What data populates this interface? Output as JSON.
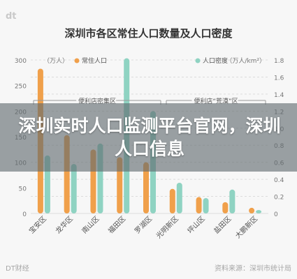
{
  "brand": "dt",
  "chart_data": {
    "type": "bar",
    "title": "深圳市各区常住人口数量及人口密度",
    "categories": [
      "宝安区",
      "龙华区",
      "南山区",
      "福田区",
      "罗湖区",
      "光明新区",
      "坪山区",
      "盐田区",
      "大鹏新区"
    ],
    "series": [
      {
        "name": "常住人口",
        "axis": "left",
        "color": "#f0a04b",
        "values": [
          283,
          153,
          125,
          110,
          100,
          48,
          32,
          22,
          11
        ]
      },
      {
        "name": "人口密度",
        "axis": "right",
        "color": "#8fd3c2",
        "values": [
          0.68,
          0.58,
          0.82,
          1.82,
          1.2,
          0.36,
          0.18,
          0.28,
          0.04
        ]
      }
    ],
    "left_axis": {
      "unit": "（万人）",
      "ticks": [
        0,
        50,
        100,
        150,
        200,
        250,
        300
      ],
      "ylim": [
        0,
        300
      ]
    },
    "right_axis": {
      "unit": "（万人/km²）",
      "ticks": [
        0,
        0.2,
        0.4,
        0.6,
        0.8,
        1.0,
        1.2,
        1.4,
        1.6,
        1.8
      ],
      "ylim": [
        0,
        1.8
      ]
    },
    "annotations": [
      "便利店密集区",
      "便利店“荒漠”区"
    ],
    "grid": true,
    "legend": "top"
  },
  "overlay_headline": "深圳实时人口监测平台官网，深圳人口信息",
  "footer": {
    "left": "DT财经",
    "right": "资料来源：深圳市统计局"
  }
}
